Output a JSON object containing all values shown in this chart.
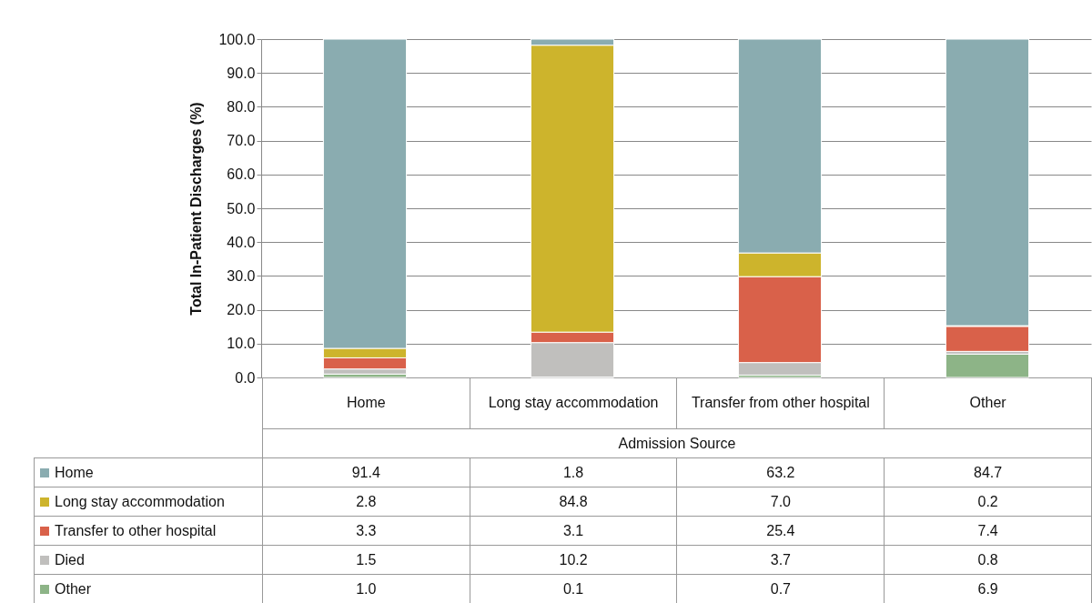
{
  "chart_data": {
    "type": "bar",
    "stacked": true,
    "ylabel": "Total In-Patient Discharges (%)",
    "xlabel": "Admission Source",
    "categories": [
      "Home",
      "Long stay accommodation",
      "Transfer from other hospital",
      "Other"
    ],
    "ylim": [
      0,
      100
    ],
    "yticks": [
      {
        "value": 0,
        "label": "0.0"
      },
      {
        "value": 10,
        "label": "10.0"
      },
      {
        "value": 20,
        "label": "20.0"
      },
      {
        "value": 30,
        "label": "30.0"
      },
      {
        "value": 40,
        "label": "40.0"
      },
      {
        "value": 50,
        "label": "50.0"
      },
      {
        "value": 60,
        "label": "60.0"
      },
      {
        "value": 70,
        "label": "70.0"
      },
      {
        "value": 80,
        "label": "80.0"
      },
      {
        "value": 90,
        "label": "90.0"
      },
      {
        "value": 100,
        "label": "100.0"
      }
    ],
    "grid": "y",
    "legend": "bottom",
    "series": [
      {
        "name": "Other",
        "color": "#8db487",
        "values": [
          1.0,
          0.1,
          0.7,
          6.9
        ],
        "value_labels": [
          "1.0",
          "0.1",
          "0.7",
          "6.9"
        ]
      },
      {
        "name": "Died",
        "color": "#c0bfbd",
        "values": [
          1.5,
          10.2,
          3.7,
          0.8
        ],
        "value_labels": [
          "1.5",
          "10.2",
          "3.7",
          "0.8"
        ]
      },
      {
        "name": "Transfer to other hospital",
        "color": "#d9614a",
        "values": [
          3.3,
          3.1,
          25.4,
          7.4
        ],
        "value_labels": [
          "3.3",
          "3.1",
          "25.4",
          "7.4"
        ]
      },
      {
        "name": "Long stay accommodation",
        "color": "#cdb42c",
        "values": [
          2.8,
          84.8,
          7.0,
          0.2
        ],
        "value_labels": [
          "2.8",
          "84.8",
          "7.0",
          "0.2"
        ]
      },
      {
        "name": "Home",
        "color": "#8aacb0",
        "values": [
          91.4,
          1.8,
          63.2,
          84.7
        ],
        "value_labels": [
          "91.4",
          "1.8",
          "63.2",
          "84.7"
        ]
      }
    ]
  }
}
